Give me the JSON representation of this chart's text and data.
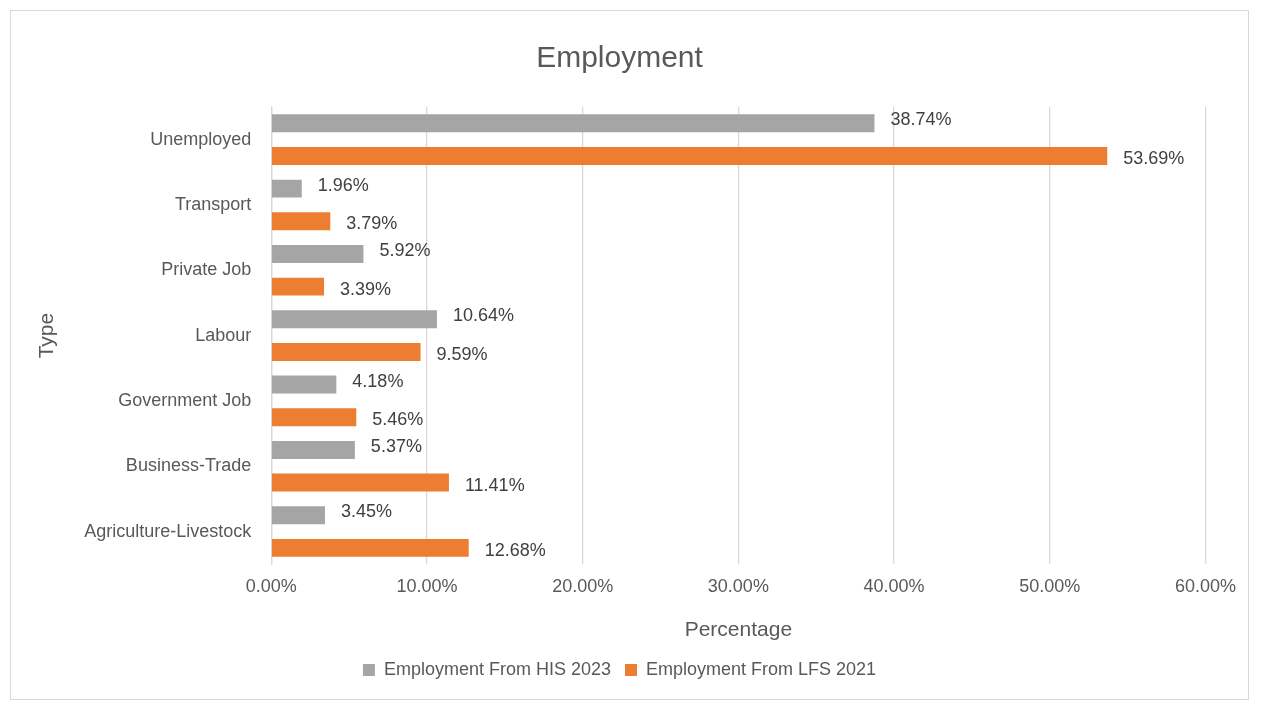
{
  "chart_data": {
    "type": "bar",
    "orientation": "horizontal",
    "title": "Employment",
    "xlabel": "Percentage",
    "ylabel": "Type",
    "categories": [
      "Unemployed",
      "Transport",
      "Private Job",
      "Labour",
      "Government Job",
      "Business-Trade",
      "Agriculture-Livestock"
    ],
    "series": [
      {
        "name": "Employment From HIS 2023",
        "color": "#a5a5a5",
        "values": [
          38.74,
          1.96,
          5.92,
          10.64,
          4.18,
          5.37,
          3.45
        ],
        "value_labels": [
          "38.74%",
          "1.96%",
          "5.92%",
          "10.64%",
          "4.18%",
          "5.37%",
          "3.45%"
        ]
      },
      {
        "name": "Employment From LFS 2021",
        "color": "#ed7d31",
        "values": [
          53.69,
          3.79,
          3.39,
          9.59,
          5.46,
          11.41,
          12.68
        ],
        "value_labels": [
          "53.69%",
          "3.79%",
          "3.39%",
          "9.59%",
          "5.46%",
          "11.41%",
          "12.68%"
        ]
      }
    ],
    "xlim": [
      0,
      60
    ],
    "xticks": [
      {
        "value": 0,
        "label": "0.00%"
      },
      {
        "value": 10,
        "label": "10.00%"
      },
      {
        "value": 20,
        "label": "20.00%"
      },
      {
        "value": 30,
        "label": "30.00%"
      },
      {
        "value": 40,
        "label": "40.00%"
      },
      {
        "value": 50,
        "label": "50.00%"
      },
      {
        "value": 60,
        "label": "60.00%"
      }
    ],
    "grid": "x",
    "legend": "bottom"
  }
}
